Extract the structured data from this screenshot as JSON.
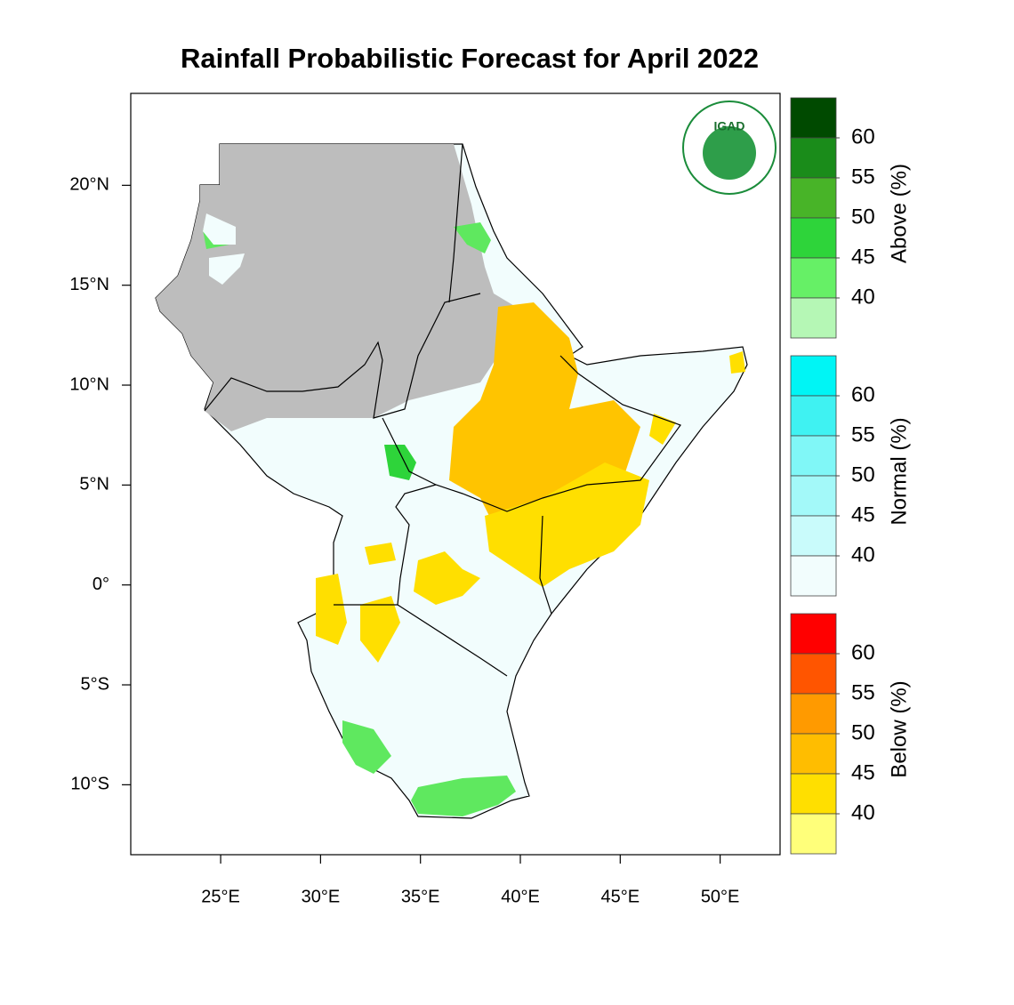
{
  "title": "Rainfall Probabilistic Forecast for April 2022",
  "logo": "IGAD",
  "map": {
    "xlim": [
      20.5,
      53
    ],
    "ylim": [
      -13.5,
      24.6
    ],
    "xticks": [
      {
        "value": 25,
        "label": "25°E"
      },
      {
        "value": 30,
        "label": "30°E"
      },
      {
        "value": 35,
        "label": "35°E"
      },
      {
        "value": 40,
        "label": "40°E"
      },
      {
        "value": 45,
        "label": "45°E"
      },
      {
        "value": 50,
        "label": "50°E"
      }
    ],
    "yticks": [
      {
        "value": 20,
        "label": "20°N"
      },
      {
        "value": 15,
        "label": "15°N"
      },
      {
        "value": 10,
        "label": "10°N"
      },
      {
        "value": 5,
        "label": "5°N"
      },
      {
        "value": 0,
        "label": "0°"
      },
      {
        "value": -5,
        "label": "5°S"
      },
      {
        "value": -10,
        "label": "10°S"
      }
    ]
  },
  "legends": [
    {
      "title": "Above (%)",
      "ticks": [
        60,
        55,
        50,
        45,
        40
      ],
      "colors": [
        "#004a00",
        "#1a8c1a",
        "#48b428",
        "#2ed43a",
        "#66f066",
        "#b5f7b5"
      ]
    },
    {
      "title": "Normal (%)",
      "ticks": [
        60,
        55,
        50,
        45,
        40
      ],
      "colors": [
        "#00f5f5",
        "#3ff2f2",
        "#80f7f7",
        "#a3f9f9",
        "#c9fbfb",
        "#f2fdfd"
      ]
    },
    {
      "title": "Below (%)",
      "ticks": [
        60,
        55,
        50,
        45,
        40
      ],
      "colors": [
        "#ff0000",
        "#ff5500",
        "#ff9a00",
        "#ffbd00",
        "#ffdf00",
        "#ffff7a"
      ]
    }
  ]
}
